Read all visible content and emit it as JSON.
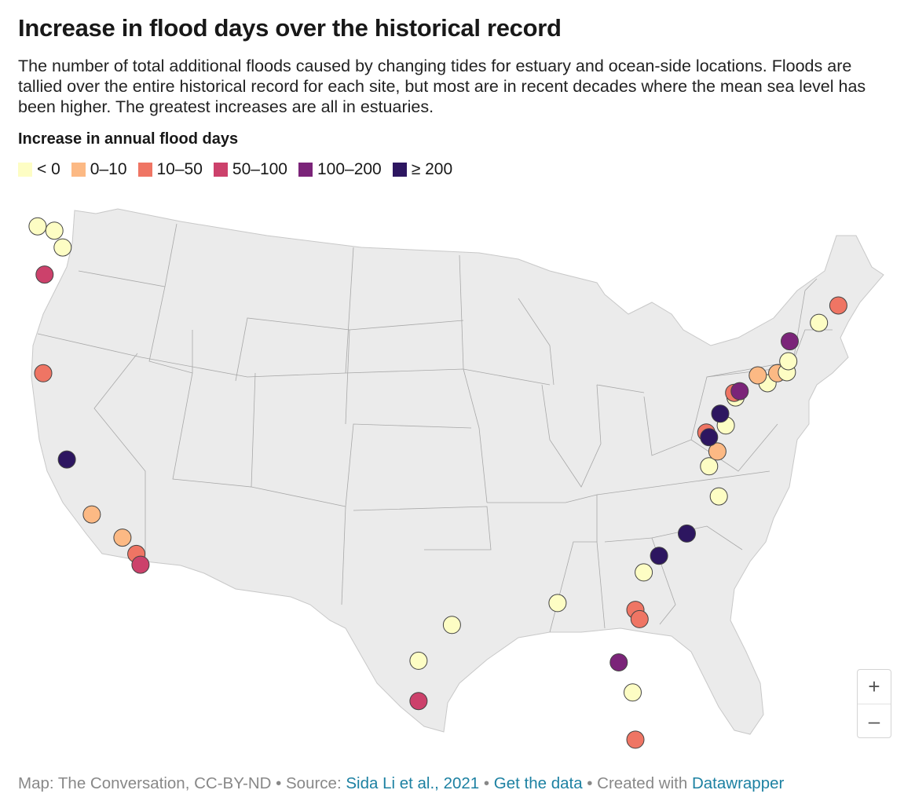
{
  "header": {
    "title": "Increase in flood days over the historical record",
    "description": "The number of total additional floods caused by changing tides for estuary and ocean-side locations. Floods are tallied over the entire historical record for each site, but most are in recent decades where the mean sea level has been higher. The greatest increases are all in estuaries."
  },
  "legend": {
    "title": "Increase in annual flood days",
    "items": [
      {
        "label": "< 0",
        "color": "#fdfdc4"
      },
      {
        "label": "0–10",
        "color": "#fcb984"
      },
      {
        "label": "10–50",
        "color": "#ef7564"
      },
      {
        "label": "50–100",
        "color": "#cc416b"
      },
      {
        "label": "100–200",
        "color": "#7b2479"
      },
      {
        "label": "≥ 200",
        "color": "#2d1660"
      }
    ]
  },
  "map": {
    "region": "contiguous United States",
    "fill_color": "#ebebeb",
    "border_color": "#b0b0b0",
    "marker_stroke": "#444444"
  },
  "zoom": {
    "in_label": "+",
    "out_label": "–"
  },
  "footer": {
    "credit": "Map: The Conversation, CC-BY-ND",
    "sep1": " • Source: ",
    "source_link": "Sida Li et al., 2021",
    "sep2": " • ",
    "data_link": "Get the data",
    "sep3": " • Created with ",
    "tool_link": "Datawrapper"
  },
  "stations": [
    {
      "lon": -124.6,
      "lat": 48.4,
      "cat": 0
    },
    {
      "lon": -123.4,
      "lat": 48.1,
      "cat": 0
    },
    {
      "lon": -122.8,
      "lat": 47.3,
      "cat": 0
    },
    {
      "lon": -124.1,
      "lat": 46.2,
      "cat": 3
    },
    {
      "lon": -124.2,
      "lat": 41.8,
      "cat": 2
    },
    {
      "lon": -122.5,
      "lat": 37.8,
      "cat": 5
    },
    {
      "lon": -120.7,
      "lat": 35.2,
      "cat": 1
    },
    {
      "lon": -118.5,
      "lat": 34.0,
      "cat": 1
    },
    {
      "lon": -117.5,
      "lat": 33.2,
      "cat": 2
    },
    {
      "lon": -117.2,
      "lat": 32.7,
      "cat": 3
    },
    {
      "lon": -97.2,
      "lat": 27.7,
      "cat": 0
    },
    {
      "lon": -97.2,
      "lat": 25.9,
      "cat": 3
    },
    {
      "lon": -94.8,
      "lat": 29.3,
      "cat": 0
    },
    {
      "lon": -87.2,
      "lat": 30.4,
      "cat": 0
    },
    {
      "lon": -82.8,
      "lat": 27.9,
      "cat": 4
    },
    {
      "lon": -81.8,
      "lat": 26.6,
      "cat": 0
    },
    {
      "lon": -81.6,
      "lat": 24.5,
      "cat": 2
    },
    {
      "lon": -81.6,
      "lat": 30.3,
      "cat": 2
    },
    {
      "lon": -81.3,
      "lat": 29.9,
      "cat": 2
    },
    {
      "lon": -81.0,
      "lat": 32.0,
      "cat": 0
    },
    {
      "lon": -79.9,
      "lat": 32.8,
      "cat": 5
    },
    {
      "lon": -77.9,
      "lat": 33.9,
      "cat": 5
    },
    {
      "lon": -75.6,
      "lat": 35.7,
      "cat": 0
    },
    {
      "lon": -76.3,
      "lat": 37.0,
      "cat": 0
    },
    {
      "lon": -75.7,
      "lat": 37.7,
      "cat": 1
    },
    {
      "lon": -76.5,
      "lat": 38.5,
      "cat": 2
    },
    {
      "lon": -76.3,
      "lat": 38.3,
      "cat": 5
    },
    {
      "lon": -75.1,
      "lat": 38.9,
      "cat": 0
    },
    {
      "lon": -75.5,
      "lat": 39.4,
      "cat": 5
    },
    {
      "lon": -74.4,
      "lat": 40.2,
      "cat": 0
    },
    {
      "lon": -74.5,
      "lat": 40.4,
      "cat": 2
    },
    {
      "lon": -74.1,
      "lat": 40.5,
      "cat": 4
    },
    {
      "lon": -72.1,
      "lat": 41.0,
      "cat": 0
    },
    {
      "lon": -72.8,
      "lat": 41.3,
      "cat": 1
    },
    {
      "lon": -71.4,
      "lat": 41.5,
      "cat": 1
    },
    {
      "lon": -70.7,
      "lat": 41.6,
      "cat": 0
    },
    {
      "lon": -70.6,
      "lat": 42.1,
      "cat": 0
    },
    {
      "lon": -70.5,
      "lat": 43.0,
      "cat": 4
    },
    {
      "lon": -68.4,
      "lat": 44.0,
      "cat": 0
    },
    {
      "lon": -67.0,
      "lat": 44.9,
      "cat": 2
    }
  ]
}
